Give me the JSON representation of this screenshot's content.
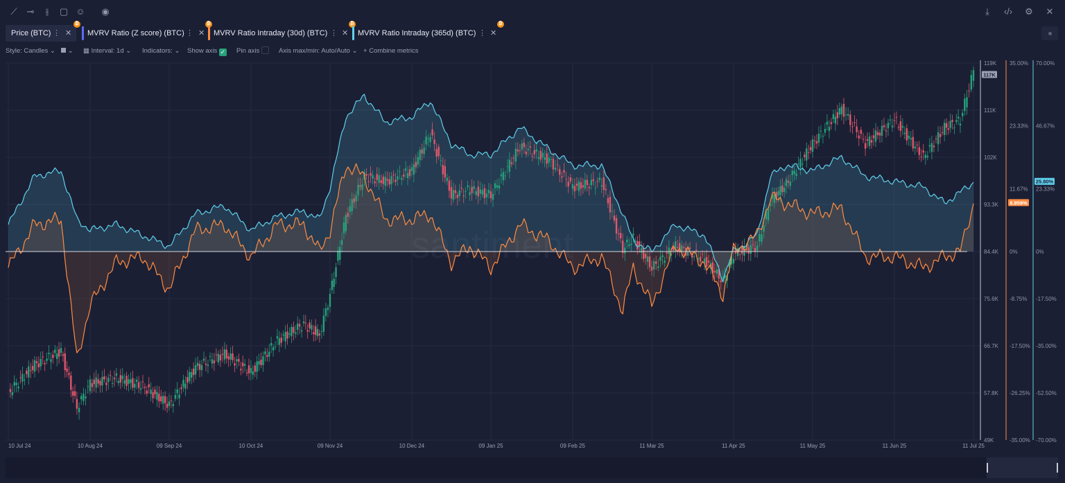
{
  "toolbar": {
    "icons": [
      "line-tool-icon",
      "horizontal-line-tool-icon",
      "vertical-line-tool-icon",
      "note-icon",
      "emoji-icon",
      "eye-icon"
    ],
    "right_icons": [
      "download-icon",
      "embed-code-icon",
      "settings-icon",
      "close-icon"
    ]
  },
  "tabs": [
    {
      "label": "Price (BTC)",
      "color": "#9aa0b5"
    },
    {
      "label": "MVRV Ratio (Z score) (BTC)",
      "color": "#5b6cf0"
    },
    {
      "label": "MVRV Ratio Intraday (30d) (BTC)",
      "color": "#ff8c42"
    },
    {
      "label": "MVRV Ratio Intraday (365d) (BTC)",
      "color": "#5fd0ec"
    }
  ],
  "options": {
    "style": "Style: Candles",
    "interval": "Interval: 1d",
    "indicators": "Indicators:",
    "show_axis": "Show axis",
    "pin_axis": "Pin axis",
    "axis_mode": "Axis max/min: Auto/Auto",
    "combine": "Combine metrics"
  },
  "watermark": "santiment",
  "colors": {
    "background": "#1b1f34",
    "candle_up": "#26a17b",
    "candle_down": "#e0576b",
    "mvrv30": "#ff8c42",
    "mvrv365": "#5fd0ec",
    "grid": "#262b44",
    "zero_line": "#d6d8e0"
  },
  "chart_data": {
    "type": "line",
    "x_labels": [
      "10 Jul 24",
      "10 Aug 24",
      "09 Sep 24",
      "10 Oct 24",
      "09 Nov 24",
      "10 Dec 24",
      "09 Jan 25",
      "09 Feb 25",
      "11 Mar 25",
      "11 Apr 25",
      "11 May 25",
      "11 Jun 25",
      "11 Jul 25"
    ],
    "y_axes": [
      {
        "name": "price",
        "ticks": [
          "119K",
          "111K",
          "102K",
          "93.3K",
          "84.4K",
          "75.6K",
          "66.7K",
          "57.8K",
          "49K"
        ],
        "ylim": [
          49000,
          119000
        ],
        "last_value_label": "117K"
      },
      {
        "name": "mvrv30",
        "ticks": [
          "35.00%",
          "23.33%",
          "11.67%",
          "0%",
          "-8.75%",
          "-17.50%",
          "-26.25%",
          "-35.00%"
        ],
        "ylim": [
          -35,
          35
        ],
        "last_value_label": "8.959%"
      },
      {
        "name": "mvrv365",
        "ticks": [
          "70.00%",
          "46.67%",
          "23.33%",
          "0%",
          "-17.50%",
          "-35.00%",
          "-52.50%",
          "-70.00%"
        ],
        "ylim": [
          -70,
          70
        ],
        "last_value_label": "25.80%"
      }
    ],
    "series": [
      {
        "name": "Price (BTC)",
        "kind": "candles",
        "x": [
          "10 Jul 24",
          "20 Jul 24",
          "30 Jul 24",
          "05 Aug 24",
          "10 Aug 24",
          "20 Aug 24",
          "30 Aug 24",
          "09 Sep 24",
          "19 Sep 24",
          "30 Sep 24",
          "10 Oct 24",
          "20 Oct 24",
          "30 Oct 24",
          "05 Nov 24",
          "09 Nov 24",
          "15 Nov 24",
          "22 Nov 24",
          "30 Nov 24",
          "10 Dec 24",
          "17 Dec 24",
          "25 Dec 24",
          "01 Jan 25",
          "09 Jan 25",
          "20 Jan 25",
          "31 Jan 25",
          "09 Feb 25",
          "20 Feb 25",
          "28 Feb 25",
          "04 Mar 25",
          "11 Mar 25",
          "20 Mar 25",
          "31 Mar 25",
          "07 Apr 25",
          "11 Apr 25",
          "20 Apr 25",
          "25 Apr 25",
          "01 May 25",
          "11 May 25",
          "22 May 25",
          "31 May 25",
          "11 Jun 25",
          "22 Jun 25",
          "30 Jun 25",
          "06 Jul 25",
          "11 Jul 25"
        ],
        "values": [
          57800,
          63000,
          65500,
          55000,
          59500,
          60500,
          59000,
          55500,
          62500,
          65000,
          61500,
          67500,
          70500,
          68500,
          76000,
          90500,
          98000,
          97000,
          99000,
          106000,
          94500,
          95500,
          94500,
          103500,
          101000,
          96000,
          97000,
          84500,
          86500,
          81000,
          85000,
          82500,
          78500,
          83500,
          85000,
          93500,
          96500,
          104000,
          110500,
          104000,
          108500,
          101500,
          107000,
          108500,
          117500
        ]
      },
      {
        "name": "MVRV Ratio Intraday (30d) (BTC)",
        "kind": "line",
        "x": [
          "10 Jul 24",
          "20 Jul 24",
          "30 Jul 24",
          "05 Aug 24",
          "10 Aug 24",
          "20 Aug 24",
          "30 Aug 24",
          "09 Sep 24",
          "19 Sep 24",
          "30 Sep 24",
          "10 Oct 24",
          "20 Oct 24",
          "30 Oct 24",
          "05 Nov 24",
          "09 Nov 24",
          "15 Nov 24",
          "22 Nov 24",
          "30 Nov 24",
          "10 Dec 24",
          "17 Dec 24",
          "25 Dec 24",
          "01 Jan 25",
          "09 Jan 25",
          "20 Jan 25",
          "31 Jan 25",
          "09 Feb 25",
          "20 Feb 25",
          "28 Feb 25",
          "04 Mar 25",
          "11 Mar 25",
          "20 Mar 25",
          "31 Mar 25",
          "07 Apr 25",
          "11 Apr 25",
          "20 Apr 25",
          "25 Apr 25",
          "01 May 25",
          "11 May 25",
          "22 May 25",
          "31 May 25",
          "11 Jun 25",
          "22 Jun 25",
          "30 Jun 25",
          "06 Jul 25",
          "11 Jul 25"
        ],
        "values": [
          -3,
          5,
          6,
          -20,
          -10,
          -2,
          -1,
          -7,
          4,
          5,
          -1,
          5,
          5,
          0,
          4,
          16,
          14,
          6,
          6,
          7,
          -2,
          1,
          -3,
          5,
          2,
          -3,
          -1,
          -11,
          -3,
          -10,
          1,
          -2,
          -8,
          0,
          3,
          10,
          9,
          7,
          8,
          -1,
          -1,
          -3,
          -1,
          0,
          9
        ]
      },
      {
        "name": "MVRV Ratio Intraday (365d) (BTC)",
        "kind": "line",
        "x": [
          "10 Jul 24",
          "20 Jul 24",
          "30 Jul 24",
          "05 Aug 24",
          "10 Aug 24",
          "20 Aug 24",
          "30 Aug 24",
          "09 Sep 24",
          "19 Sep 24",
          "30 Sep 24",
          "10 Oct 24",
          "20 Oct 24",
          "30 Oct 24",
          "05 Nov 24",
          "09 Nov 24",
          "15 Nov 24",
          "22 Nov 24",
          "30 Nov 24",
          "10 Dec 24",
          "17 Dec 24",
          "25 Dec 24",
          "01 Jan 25",
          "09 Jan 25",
          "20 Jan 25",
          "31 Jan 25",
          "09 Feb 25",
          "20 Feb 25",
          "28 Feb 25",
          "04 Mar 25",
          "11 Mar 25",
          "20 Mar 25",
          "31 Mar 25",
          "07 Apr 25",
          "11 Apr 25",
          "20 Apr 25",
          "25 Apr 25",
          "01 May 25",
          "11 May 25",
          "22 May 25",
          "31 May 25",
          "11 Jun 25",
          "22 Jun 25",
          "30 Jun 25",
          "06 Jul 25",
          "11 Jul 25"
        ],
        "values": [
          10,
          28,
          30,
          12,
          8,
          10,
          6,
          2,
          14,
          17,
          8,
          13,
          15,
          12,
          24,
          50,
          58,
          48,
          50,
          56,
          40,
          36,
          36,
          46,
          38,
          32,
          32,
          14,
          4,
          0,
          10,
          6,
          -10,
          0,
          6,
          28,
          32,
          30,
          35,
          28,
          26,
          24,
          18,
          22,
          25.8
        ]
      }
    ],
    "grid": true,
    "legend": "top-left"
  }
}
